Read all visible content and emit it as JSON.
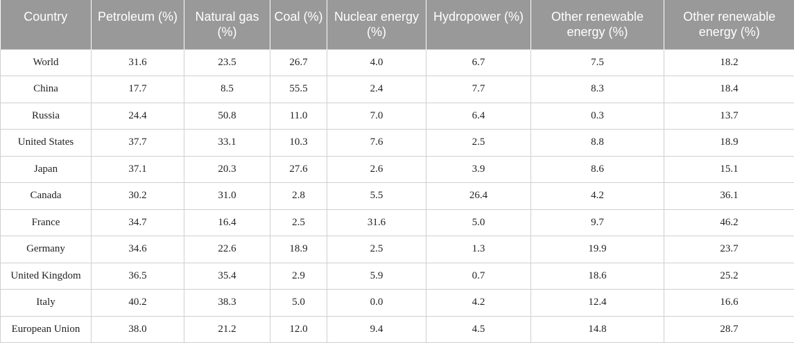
{
  "table": {
    "headers": [
      "Country",
      "Petroleum (%)",
      "Natural gas (%)",
      "Coal (%)",
      "Nuclear energy (%)",
      "Hydropower (%)",
      "Other renewable energy (%)",
      "Other renewable energy (%)"
    ],
    "rows": [
      [
        "World",
        "31.6",
        "23.5",
        "26.7",
        "4.0",
        "6.7",
        "7.5",
        "18.2"
      ],
      [
        "China",
        "17.7",
        "8.5",
        "55.5",
        "2.4",
        "7.7",
        "8.3",
        "18.4"
      ],
      [
        "Russia",
        "24.4",
        "50.8",
        "11.0",
        "7.0",
        "6.4",
        "0.3",
        "13.7"
      ],
      [
        "United States",
        "37.7",
        "33.1",
        "10.3",
        "7.6",
        "2.5",
        "8.8",
        "18.9"
      ],
      [
        "Japan",
        "37.1",
        "20.3",
        "27.6",
        "2.6",
        "3.9",
        "8.6",
        "15.1"
      ],
      [
        "Canada",
        "30.2",
        "31.0",
        "2.8",
        "5.5",
        "26.4",
        "4.2",
        "36.1"
      ],
      [
        "France",
        "34.7",
        "16.4",
        "2.5",
        "31.6",
        "5.0",
        "9.7",
        "46.2"
      ],
      [
        "Germany",
        "34.6",
        "22.6",
        "18.9",
        "2.5",
        "1.3",
        "19.9",
        "23.7"
      ],
      [
        "United Kingdom",
        "36.5",
        "35.4",
        "2.9",
        "5.9",
        "0.7",
        "18.6",
        "25.2"
      ],
      [
        "Italy",
        "40.2",
        "38.3",
        "5.0",
        "0.0",
        "4.2",
        "12.4",
        "16.6"
      ],
      [
        "European Union",
        "38.0",
        "21.2",
        "12.0",
        "9.4",
        "4.5",
        "14.8",
        "28.7"
      ]
    ]
  },
  "colors": {
    "header_background": "#999999",
    "header_text": "#ffffff",
    "grid_line": "#cfcfcf"
  }
}
